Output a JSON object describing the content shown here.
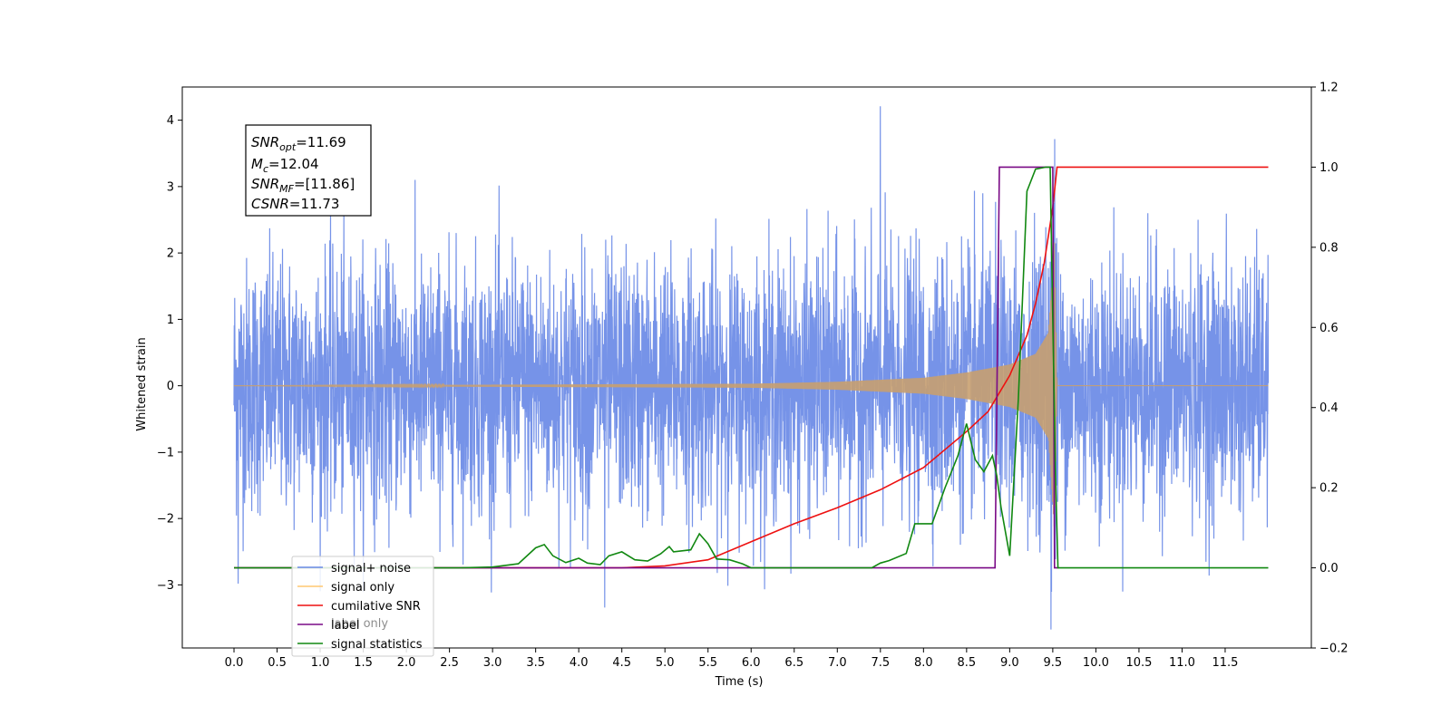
{
  "chart_data": {
    "type": "line",
    "xlabel": "Time (s)",
    "ylabel_left": "Whitened strain",
    "ylabel_right": "",
    "xlim": [
      -0.6,
      12.5
    ],
    "ylim_left": [
      -3.95,
      4.5
    ],
    "ylim_right": [
      -0.2,
      1.2
    ],
    "x_ticks": [
      0.0,
      0.5,
      1.0,
      1.5,
      2.0,
      2.5,
      3.0,
      3.5,
      4.0,
      4.5,
      5.0,
      5.5,
      6.0,
      6.5,
      7.0,
      7.5,
      8.0,
      8.5,
      9.0,
      9.5,
      10.0,
      10.5,
      11.0,
      11.5
    ],
    "x_tick_labels": [
      "0.0",
      "0.5",
      "1.0",
      "1.5",
      "2.0",
      "2.5",
      "3.0",
      "3.5",
      "4.0",
      "4.5",
      "5.0",
      "5.5",
      "6.0",
      "6.5",
      "7.0",
      "7.5",
      "8.0",
      "8.5",
      "9.0",
      "9.5",
      "10.0",
      "10.5",
      "11.0",
      "11.5"
    ],
    "y_ticks_left": [
      -3,
      -2,
      -1,
      0,
      1,
      2,
      3,
      4
    ],
    "y_tick_labels_left": [
      "−3",
      "−2",
      "−1",
      "0",
      "1",
      "2",
      "3",
      "4"
    ],
    "y_ticks_right": [
      -0.2,
      0.0,
      0.2,
      0.4,
      0.6,
      0.8,
      1.0,
      1.2
    ],
    "y_tick_labels_right": [
      "−0.2",
      "0.0",
      "0.2",
      "0.4",
      "0.6",
      "0.8",
      "1.0",
      "1.2"
    ],
    "grid": false,
    "legend_position": "lower-left",
    "noise": {
      "name": "signal+ noise",
      "color": "#6a8ae6",
      "x_range": [
        0.0,
        12.0
      ],
      "amplitude_std": 0.95,
      "peaks": [
        [
          7.5,
          4.12
        ],
        [
          9.5,
          -3.58
        ],
        [
          0.05,
          -2.98
        ],
        [
          4.3,
          -3.32
        ]
      ]
    },
    "signal": {
      "name": "signal only",
      "color": "#c8a070",
      "legend_color": "#ffc870",
      "x_range": [
        0.0,
        12.0
      ],
      "envelope": [
        [
          0.0,
          0.0
        ],
        [
          6.0,
          0.03
        ],
        [
          7.0,
          0.06
        ],
        [
          8.0,
          0.12
        ],
        [
          8.5,
          0.2
        ],
        [
          9.0,
          0.32
        ],
        [
          9.3,
          0.48
        ],
        [
          9.45,
          0.8
        ],
        [
          9.52,
          2.2
        ],
        [
          9.55,
          0.0
        ],
        [
          12.0,
          0.0
        ]
      ]
    },
    "cumulative_snr": {
      "name": "cumilative SNR",
      "color": "#ee1111",
      "points": [
        [
          0.0,
          0.0
        ],
        [
          4.5,
          0.0
        ],
        [
          5.0,
          0.005
        ],
        [
          5.5,
          0.02
        ],
        [
          6.0,
          0.065
        ],
        [
          6.5,
          0.11
        ],
        [
          7.0,
          0.15
        ],
        [
          7.5,
          0.195
        ],
        [
          8.0,
          0.25
        ],
        [
          8.5,
          0.34
        ],
        [
          8.75,
          0.39
        ],
        [
          9.0,
          0.48
        ],
        [
          9.2,
          0.58
        ],
        [
          9.3,
          0.66
        ],
        [
          9.4,
          0.76
        ],
        [
          9.5,
          0.9
        ],
        [
          9.55,
          1.0
        ],
        [
          12.0,
          1.0
        ]
      ]
    },
    "label": {
      "name": "label",
      "color": "#7a0a86",
      "points": [
        [
          0.0,
          0.0
        ],
        [
          8.83,
          0.0
        ],
        [
          8.88,
          1.0
        ],
        [
          9.5,
          1.0
        ],
        [
          9.52,
          0.0
        ],
        [
          9.57,
          0.0
        ]
      ]
    },
    "label_only": {
      "name": "label only"
    },
    "signal_statistics": {
      "name": "signal statistics",
      "color": "#118811",
      "points": [
        [
          0.0,
          0.0
        ],
        [
          2.6,
          0.0
        ],
        [
          3.0,
          0.002
        ],
        [
          3.3,
          0.01
        ],
        [
          3.5,
          0.05
        ],
        [
          3.6,
          0.058
        ],
        [
          3.7,
          0.03
        ],
        [
          3.85,
          0.013
        ],
        [
          4.0,
          0.024
        ],
        [
          4.1,
          0.012
        ],
        [
          4.25,
          0.008
        ],
        [
          4.35,
          0.03
        ],
        [
          4.5,
          0.04
        ],
        [
          4.65,
          0.02
        ],
        [
          4.8,
          0.017
        ],
        [
          4.95,
          0.035
        ],
        [
          5.05,
          0.053
        ],
        [
          5.1,
          0.04
        ],
        [
          5.3,
          0.045
        ],
        [
          5.4,
          0.085
        ],
        [
          5.5,
          0.06
        ],
        [
          5.6,
          0.022
        ],
        [
          5.75,
          0.02
        ],
        [
          5.9,
          0.01
        ],
        [
          6.0,
          0.0
        ],
        [
          7.4,
          0.0
        ],
        [
          7.5,
          0.012
        ],
        [
          7.6,
          0.018
        ],
        [
          7.8,
          0.036
        ],
        [
          7.9,
          0.11
        ],
        [
          8.0,
          0.11
        ],
        [
          8.1,
          0.11
        ],
        [
          8.25,
          0.2
        ],
        [
          8.4,
          0.28
        ],
        [
          8.5,
          0.36
        ],
        [
          8.6,
          0.27
        ],
        [
          8.7,
          0.24
        ],
        [
          8.8,
          0.28
        ],
        [
          8.85,
          0.23
        ],
        [
          8.9,
          0.15
        ],
        [
          9.0,
          0.03
        ],
        [
          9.1,
          0.42
        ],
        [
          9.2,
          0.94
        ],
        [
          9.3,
          0.995
        ],
        [
          9.42,
          1.0
        ],
        [
          9.47,
          1.0
        ],
        [
          9.53,
          0.25
        ],
        [
          9.56,
          0.0
        ],
        [
          12.0,
          0.0
        ]
      ]
    },
    "annotations": [
      {
        "main": "SNR",
        "sub": "opt",
        "value": "=11.69"
      },
      {
        "main": "M",
        "sub": "c",
        "value": "=12.04"
      },
      {
        "main": "SNR",
        "sub": "MF",
        "value": "=[11.86]"
      },
      {
        "main": "CSNR",
        "sub": "",
        "value": "=11.73"
      }
    ]
  }
}
